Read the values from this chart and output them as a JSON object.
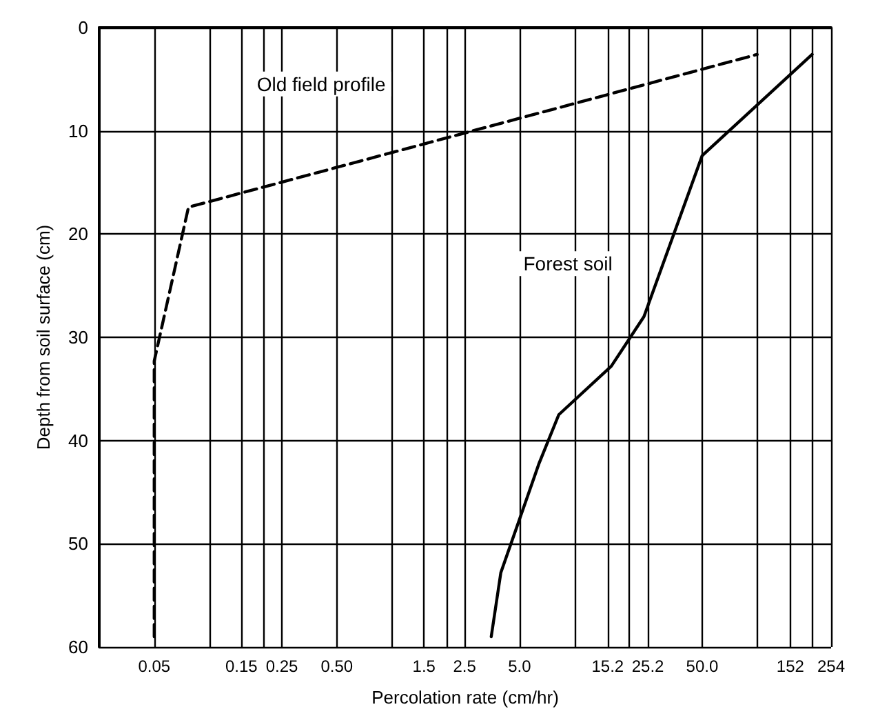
{
  "chart_data": {
    "type": "line",
    "xlabel": "Percolation rate (cm/hr)",
    "ylabel": "Depth from soil surface (cm)",
    "log": "x",
    "grid": true,
    "legend": false,
    "marker": "none",
    "xlim": [
      0.025,
      254
    ],
    "xticks": [
      0.05,
      {
        "value": 0.1,
        "label": null
      },
      0.15,
      {
        "value": 0.2,
        "label": null
      },
      0.25,
      {
        "value": 0.5,
        "label": "0.50"
      },
      {
        "value": 1,
        "label": null
      },
      1.5,
      {
        "value": 2,
        "label": null
      },
      2.5,
      {
        "value": 5,
        "label": "5.0"
      },
      {
        "value": 10,
        "label": null
      },
      15.2,
      {
        "value": 20,
        "label": null
      },
      25.2,
      {
        "value": 50,
        "label": "50.0"
      },
      {
        "value": 100,
        "label": null
      },
      152,
      {
        "value": 200,
        "label": null
      },
      254
    ],
    "ylim": [
      60,
      0
    ],
    "yticks": [
      0,
      10,
      20,
      30,
      40,
      50,
      60
    ],
    "series": [
      {
        "name": "Old field profile",
        "color": "#000000",
        "line_style": "dashed",
        "x": [
          0.05,
          0.05,
          0.077,
          100
        ],
        "values": [
          59,
          32.3,
          17.4,
          2.6
        ]
      },
      {
        "name": "Forest soil",
        "color": "#000000",
        "line_style": "solid",
        "x": [
          3.5,
          3.95,
          6.4,
          8.2,
          15.9,
          24,
          50,
          200
        ],
        "values": [
          59,
          52.8,
          42.2,
          37.5,
          32.8,
          28,
          12.4,
          2.6
        ]
      }
    ]
  }
}
